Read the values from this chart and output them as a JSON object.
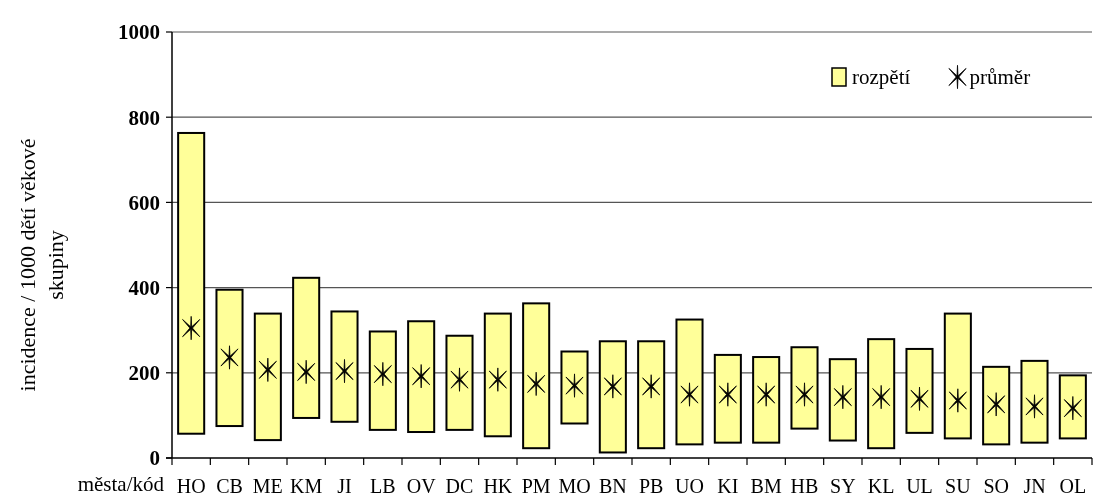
{
  "chart_data": {
    "type": "bar",
    "xlabel": "města/kód",
    "ylabel": "incidence / 1000 dětí věkové skupiny",
    "categories": [
      "HO",
      "CB",
      "ME",
      "KM",
      "JI",
      "LB",
      "OV",
      "DC",
      "HK",
      "PM",
      "MO",
      "BN",
      "PB",
      "UO",
      "KI",
      "BM",
      "HB",
      "SY",
      "KL",
      "UL",
      "SU",
      "SO",
      "JN",
      "OL"
    ],
    "series": [
      {
        "name": "rozpětí",
        "color": "#ffff99",
        "base": [
          57,
          75,
          42,
          94,
          85,
          66,
          61,
          66,
          51,
          23,
          81,
          13,
          23,
          32,
          36,
          36,
          69,
          41,
          23,
          59,
          46,
          32,
          36,
          46
        ],
        "values": [
          706,
          320,
          297,
          329,
          259,
          231,
          260,
          221,
          288,
          340,
          169,
          261,
          251,
          293,
          206,
          201,
          191,
          191,
          256,
          197,
          293,
          182,
          192,
          148
        ]
      },
      {
        "name": "průměr",
        "type": "scatter",
        "color": "#000000",
        "marker": "cross",
        "values": [
          305,
          236,
          207,
          202,
          204,
          197,
          192,
          184,
          184,
          174,
          170,
          168,
          168,
          149,
          149,
          149,
          149,
          143,
          143,
          139,
          135,
          126,
          121,
          117
        ]
      }
    ],
    "ylim": [
      0,
      1000
    ],
    "yticks": [
      0,
      200,
      400,
      600,
      800,
      1000
    ],
    "grid": "y",
    "legend": "top right"
  }
}
